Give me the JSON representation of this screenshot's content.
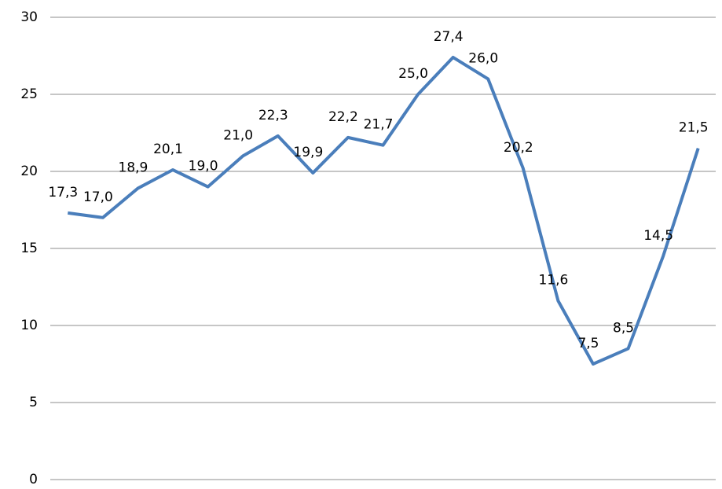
{
  "chart_data": {
    "type": "line",
    "categories": [
      null,
      null,
      null,
      null,
      null,
      null,
      null,
      null,
      null,
      null,
      null,
      null,
      null,
      null,
      null,
      null,
      null,
      null,
      null
    ],
    "series": [
      {
        "color": "#4a7ebb",
        "values": [
          17.3,
          17.0,
          18.9,
          20.1,
          19.0,
          21.0,
          22.3,
          19.9,
          22.2,
          21.7,
          25.0,
          27.4,
          26.0,
          20.2,
          11.6,
          7.5,
          8.5,
          14.5,
          21.5
        ],
        "value_labels": [
          "17,3",
          "17,0",
          "18,9",
          "20,1",
          "19,0",
          "21,0",
          "22,3",
          "19,9",
          "22,2",
          "21,7",
          "25,0",
          "27,4",
          "26,0",
          "20,2",
          "11,6",
          "7,5",
          "8,5",
          "14,5",
          "21,5"
        ]
      }
    ],
    "ylim": [
      0,
      30
    ],
    "yticks": [
      0,
      5,
      10,
      15,
      20,
      25,
      30
    ],
    "grid": true
  }
}
